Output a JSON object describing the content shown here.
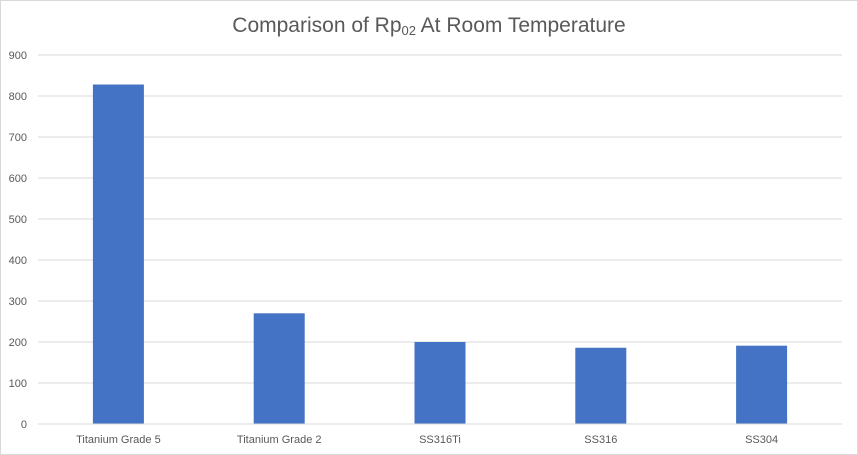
{
  "chart_data": {
    "type": "bar",
    "title": "Comparison of Rp",
    "title_subscript": "02",
    "title_suffix": " At Room Temperature",
    "xlabel": "",
    "ylabel": "",
    "categories": [
      "Titanium Grade 5",
      "Titanium Grade 2",
      "SS316Ti",
      "SS316",
      "SS304"
    ],
    "values": [
      828,
      270,
      200,
      186,
      191
    ],
    "ylim": [
      0,
      900
    ],
    "yticks": [
      "0",
      "100",
      "200",
      "300",
      "400",
      "500",
      "600",
      "700",
      "800",
      "900"
    ],
    "grid": true,
    "legend": "none",
    "bar_color": "#4472c4",
    "grid_color": "#d9d9d9",
    "text_color": "#595959"
  }
}
